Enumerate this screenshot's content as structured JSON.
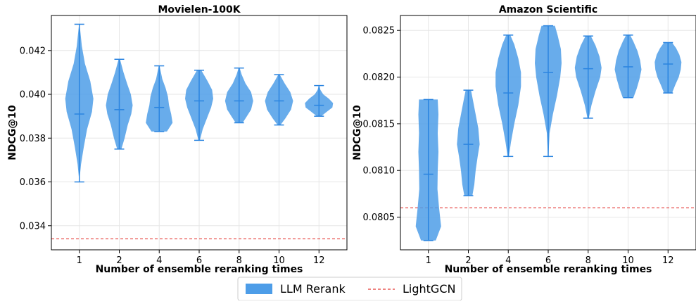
{
  "colors": {
    "violin": "#4d9de8",
    "violin_line": "#2a84e0",
    "baseline": "#e53935",
    "grid": "#e6e6e6"
  },
  "legend": {
    "items": [
      {
        "label": "LLM Rerank",
        "kind": "violin"
      },
      {
        "label": "LightGCN",
        "kind": "baseline"
      }
    ]
  },
  "chart_data": [
    {
      "type": "violin",
      "title": "Movielen-100K",
      "xlabel": "Number of ensemble reranking times",
      "ylabel": "NDCG@10",
      "categories": [
        "1",
        "2",
        "4",
        "6",
        "8",
        "10",
        "12"
      ],
      "ylim": [
        0.0329,
        0.0436
      ],
      "yticks": [
        0.034,
        0.036,
        0.038,
        0.04,
        0.042
      ],
      "ytick_labels": [
        "0.034",
        "0.036",
        "0.038",
        "0.040",
        "0.042"
      ],
      "grid": true,
      "baseline": {
        "name": "LightGCN",
        "value": 0.0334
      },
      "series": [
        {
          "min": 0.036,
          "max": 0.0432,
          "median": 0.0391,
          "density": [
            [
              0.036,
              0.0
            ],
            [
              0.0368,
              0.12
            ],
            [
              0.0376,
              0.32
            ],
            [
              0.0384,
              0.55
            ],
            [
              0.0392,
              0.9
            ],
            [
              0.0398,
              1.0
            ],
            [
              0.0406,
              0.78
            ],
            [
              0.0414,
              0.4
            ],
            [
              0.0422,
              0.18
            ],
            [
              0.0432,
              0.02
            ]
          ]
        },
        {
          "min": 0.0375,
          "max": 0.0416,
          "median": 0.0393,
          "density": [
            [
              0.0375,
              0.15
            ],
            [
              0.038,
              0.38
            ],
            [
              0.0386,
              0.6
            ],
            [
              0.0391,
              0.85
            ],
            [
              0.0395,
              0.95
            ],
            [
              0.04,
              0.82
            ],
            [
              0.0405,
              0.55
            ],
            [
              0.041,
              0.3
            ],
            [
              0.0416,
              0.05
            ]
          ]
        },
        {
          "min": 0.0383,
          "max": 0.0413,
          "median": 0.0394,
          "density": [
            [
              0.0383,
              0.55
            ],
            [
              0.0387,
              0.95
            ],
            [
              0.0391,
              0.85
            ],
            [
              0.0395,
              0.7
            ],
            [
              0.0399,
              0.62
            ],
            [
              0.0403,
              0.45
            ],
            [
              0.0407,
              0.22
            ],
            [
              0.0413,
              0.03
            ]
          ]
        },
        {
          "min": 0.0379,
          "max": 0.0411,
          "median": 0.0397,
          "density": [
            [
              0.0379,
              0.05
            ],
            [
              0.0384,
              0.25
            ],
            [
              0.0389,
              0.55
            ],
            [
              0.0394,
              0.85
            ],
            [
              0.0398,
              1.0
            ],
            [
              0.0402,
              0.92
            ],
            [
              0.0406,
              0.6
            ],
            [
              0.0411,
              0.15
            ]
          ]
        },
        {
          "min": 0.0387,
          "max": 0.0412,
          "median": 0.0397,
          "density": [
            [
              0.0387,
              0.25
            ],
            [
              0.039,
              0.55
            ],
            [
              0.0393,
              0.85
            ],
            [
              0.0397,
              1.0
            ],
            [
              0.0401,
              0.85
            ],
            [
              0.0405,
              0.45
            ],
            [
              0.0409,
              0.18
            ],
            [
              0.0412,
              0.04
            ]
          ]
        },
        {
          "min": 0.0386,
          "max": 0.0409,
          "median": 0.0397,
          "density": [
            [
              0.0386,
              0.1
            ],
            [
              0.0389,
              0.45
            ],
            [
              0.0393,
              0.85
            ],
            [
              0.0397,
              1.0
            ],
            [
              0.0401,
              0.8
            ],
            [
              0.0405,
              0.4
            ],
            [
              0.0409,
              0.05
            ]
          ]
        },
        {
          "min": 0.039,
          "max": 0.0404,
          "median": 0.0395,
          "density": [
            [
              0.039,
              0.15
            ],
            [
              0.0392,
              0.55
            ],
            [
              0.0394,
              0.95
            ],
            [
              0.0396,
              1.0
            ],
            [
              0.0398,
              0.7
            ],
            [
              0.04,
              0.3
            ],
            [
              0.0402,
              0.1
            ],
            [
              0.0404,
              0.02
            ]
          ]
        }
      ]
    },
    {
      "type": "violin",
      "title": "Amazon Scientific",
      "xlabel": "Number of ensemble reranking times",
      "ylabel": "NDCG@10",
      "categories": [
        "1",
        "2",
        "4",
        "6",
        "8",
        "10",
        "12"
      ],
      "ylim": [
        0.08015,
        0.08266
      ],
      "yticks": [
        0.0805,
        0.081,
        0.0815,
        0.082,
        0.0825
      ],
      "ytick_labels": [
        "0.0805",
        "0.0810",
        "0.0815",
        "0.0820",
        "0.0825"
      ],
      "grid": true,
      "baseline": {
        "name": "LightGCN",
        "value": 0.0806
      },
      "series": [
        {
          "min": 0.08025,
          "max": 0.08176,
          "median": 0.08096,
          "density": [
            [
              0.08025,
              0.55
            ],
            [
              0.0804,
              0.95
            ],
            [
              0.0806,
              0.8
            ],
            [
              0.0808,
              0.68
            ],
            [
              0.081,
              0.7
            ],
            [
              0.0812,
              0.75
            ],
            [
              0.0814,
              0.7
            ],
            [
              0.0816,
              0.75
            ],
            [
              0.08176,
              0.7
            ]
          ]
        },
        {
          "min": 0.08073,
          "max": 0.08186,
          "median": 0.08128,
          "density": [
            [
              0.08073,
              0.3
            ],
            [
              0.08085,
              0.45
            ],
            [
              0.081,
              0.55
            ],
            [
              0.08115,
              0.7
            ],
            [
              0.08128,
              0.85
            ],
            [
              0.08145,
              0.75
            ],
            [
              0.0816,
              0.55
            ],
            [
              0.08175,
              0.35
            ],
            [
              0.08186,
              0.2
            ]
          ]
        },
        {
          "min": 0.08115,
          "max": 0.08245,
          "median": 0.08183,
          "density": [
            [
              0.08115,
              0.05
            ],
            [
              0.0813,
              0.2
            ],
            [
              0.0815,
              0.45
            ],
            [
              0.0817,
              0.75
            ],
            [
              0.0819,
              0.95
            ],
            [
              0.08205,
              0.95
            ],
            [
              0.0822,
              0.75
            ],
            [
              0.08235,
              0.45
            ],
            [
              0.08245,
              0.15
            ]
          ]
        },
        {
          "min": 0.08115,
          "max": 0.08255,
          "median": 0.08205,
          "density": [
            [
              0.08115,
              0.02
            ],
            [
              0.0814,
              0.1
            ],
            [
              0.0816,
              0.35
            ],
            [
              0.0818,
              0.65
            ],
            [
              0.082,
              0.9
            ],
            [
              0.08215,
              1.0
            ],
            [
              0.0823,
              0.95
            ],
            [
              0.08245,
              0.7
            ],
            [
              0.08255,
              0.5
            ]
          ]
        },
        {
          "min": 0.08156,
          "max": 0.08244,
          "median": 0.08209,
          "density": [
            [
              0.08156,
              0.05
            ],
            [
              0.0817,
              0.25
            ],
            [
              0.08185,
              0.55
            ],
            [
              0.082,
              0.9
            ],
            [
              0.0821,
              1.0
            ],
            [
              0.08222,
              0.85
            ],
            [
              0.08234,
              0.55
            ],
            [
              0.08244,
              0.2
            ]
          ]
        },
        {
          "min": 0.08178,
          "max": 0.08245,
          "median": 0.08211,
          "density": [
            [
              0.08178,
              0.4
            ],
            [
              0.08188,
              0.65
            ],
            [
              0.08198,
              0.85
            ],
            [
              0.08208,
              1.0
            ],
            [
              0.08218,
              0.9
            ],
            [
              0.08228,
              0.7
            ],
            [
              0.08238,
              0.4
            ],
            [
              0.08245,
              0.15
            ]
          ]
        },
        {
          "min": 0.08183,
          "max": 0.08237,
          "median": 0.08214,
          "density": [
            [
              0.08183,
              0.3
            ],
            [
              0.08192,
              0.55
            ],
            [
              0.082,
              0.8
            ],
            [
              0.08208,
              0.95
            ],
            [
              0.08216,
              1.0
            ],
            [
              0.08224,
              0.85
            ],
            [
              0.08231,
              0.6
            ],
            [
              0.08237,
              0.3
            ]
          ]
        }
      ]
    }
  ]
}
